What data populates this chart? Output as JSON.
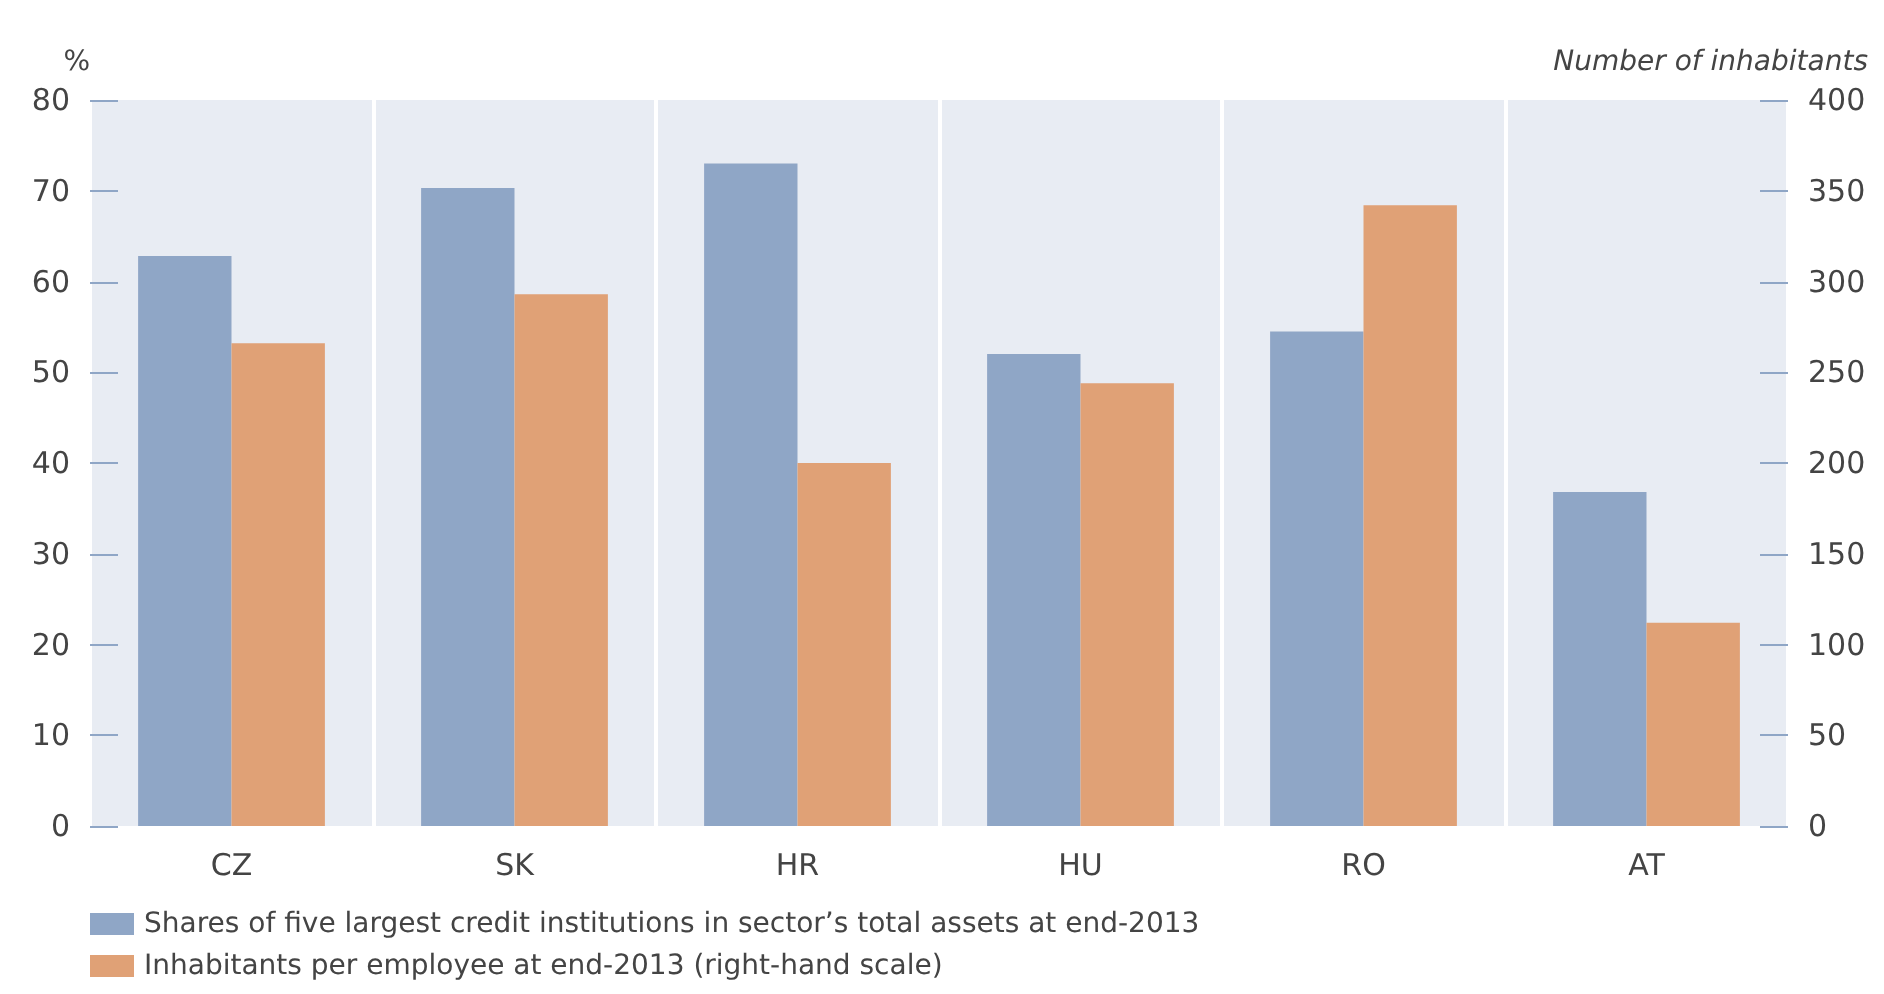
{
  "chart_data": {
    "type": "bar",
    "ylabel": "%",
    "y2label": "Number of inhabitants",
    "categories": [
      "CZ",
      "SK",
      "HR",
      "HU",
      "RO",
      "AT"
    ],
    "series": [
      {
        "name": "Shares of five largest credit institutions in sector’s total assets at end-2013",
        "color": "#8fa6c6",
        "values": [
          62.8,
          70.3,
          73.0,
          52.0,
          54.5,
          36.8
        ]
      },
      {
        "name": "Inhabitants per employee at end-2013 (right-hand scale)",
        "color": "#e0a176",
        "values": [
          266,
          293,
          200,
          244,
          342,
          112
        ],
        "axis": "y2"
      }
    ],
    "ylim": [
      0,
      80
    ],
    "yticks": [
      0,
      10,
      20,
      30,
      40,
      50,
      60,
      70,
      80
    ],
    "y2lim": [
      0,
      400
    ],
    "y2ticks": [
      0,
      50,
      100,
      150,
      200,
      250,
      300,
      350,
      400
    ],
    "grid": "x",
    "legend": "bottom left"
  }
}
